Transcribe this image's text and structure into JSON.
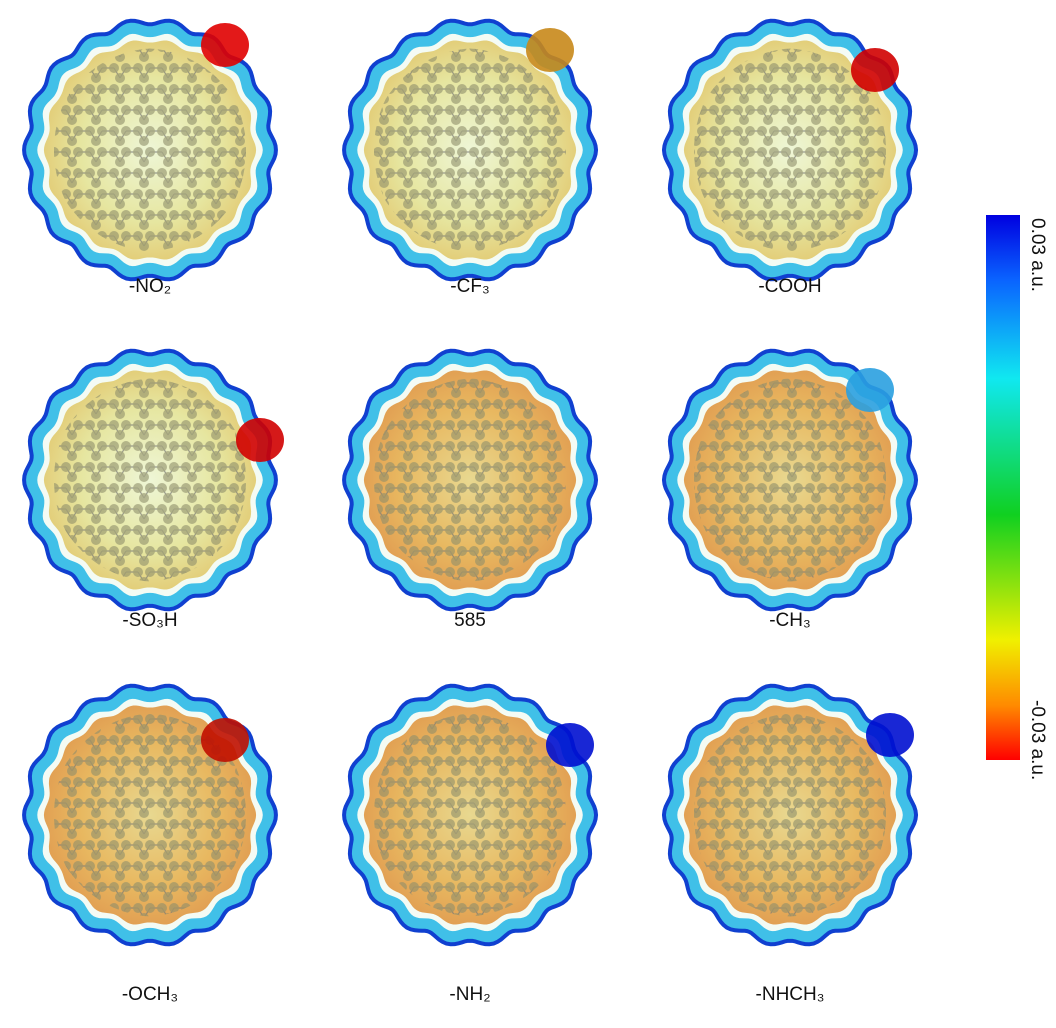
{
  "panels": [
    {
      "label": "-NO₂"
    },
    {
      "label": "-CF₃"
    },
    {
      "label": "-COOH"
    },
    {
      "label": "-SO₃H"
    },
    {
      "label": "585"
    },
    {
      "label": "-CH₃"
    },
    {
      "label": "-OCH₃"
    },
    {
      "label": "-NH₂"
    },
    {
      "label": "-NHCH₃"
    }
  ],
  "colorbar": {
    "top_label": "0.03 a.u.",
    "bottom_label": "-0.03 a.u."
  }
}
